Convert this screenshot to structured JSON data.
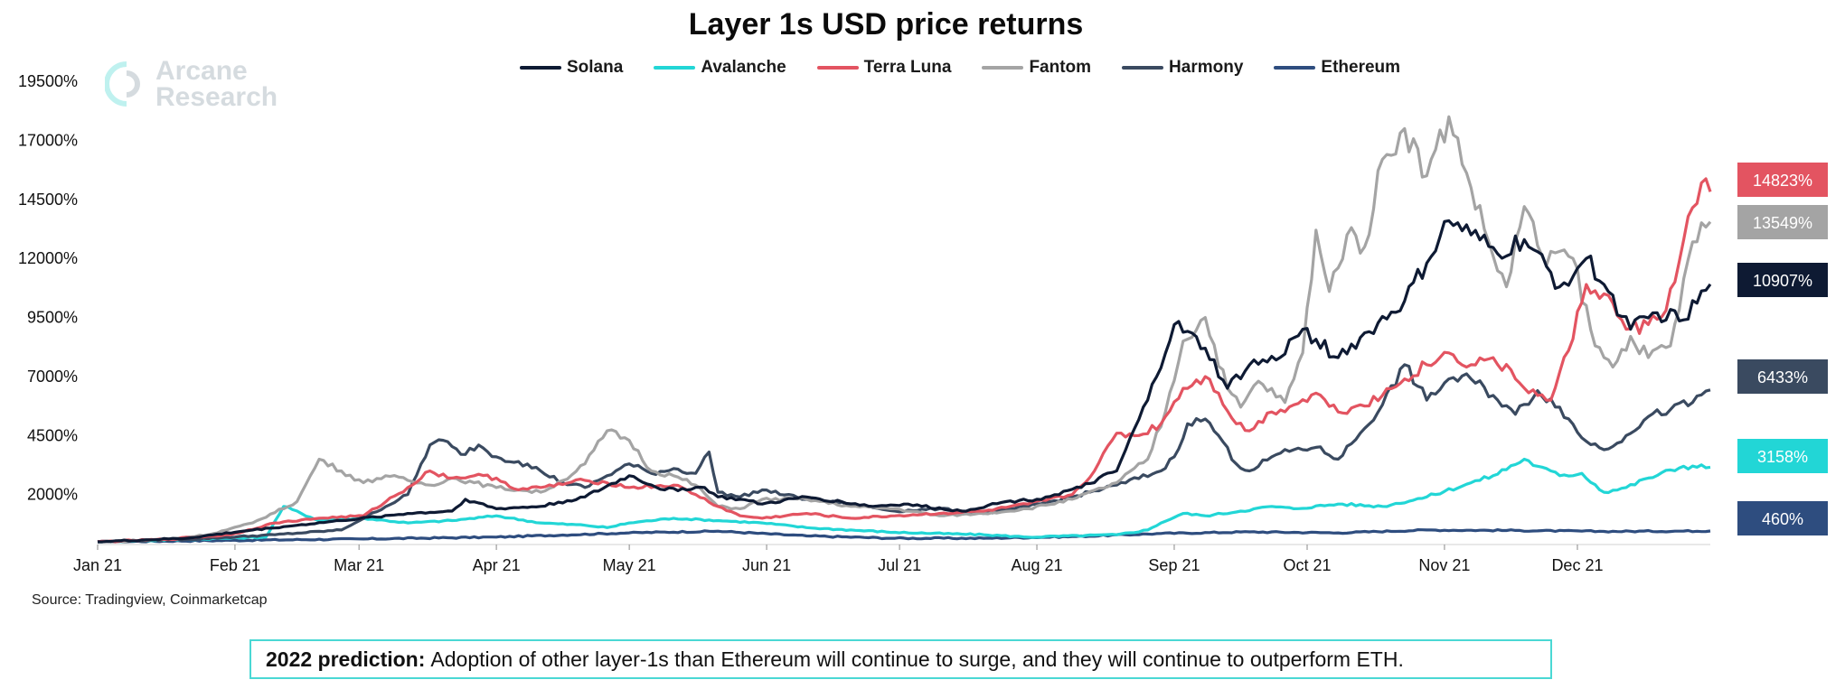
{
  "chart_data": {
    "type": "line",
    "title": "Layer 1s USD price returns",
    "xlabel": "",
    "ylabel": "",
    "ylim": [
      0,
      20000
    ],
    "y_tick_labels": [
      "2000%",
      "4500%",
      "7000%",
      "9500%",
      "12000%",
      "14500%",
      "17000%",
      "19500%"
    ],
    "y_tick_values": [
      2000,
      4500,
      7000,
      9500,
      12000,
      14500,
      17000,
      19500
    ],
    "x_tick_labels": [
      "Jan 21",
      "Feb 21",
      "Mar 21",
      "Apr 21",
      "May 21",
      "Jun 21",
      "Jul 21",
      "Aug 21",
      "Sep 21",
      "Oct 21",
      "Nov 21",
      "Dec 21"
    ],
    "x_tick_days": [
      0,
      31,
      59,
      90,
      120,
      151,
      181,
      212,
      243,
      273,
      304,
      334
    ],
    "x_range_days": [
      0,
      364
    ],
    "grid": false,
    "legend_position": "top-center",
    "series": [
      {
        "name": "Solana",
        "color": "#0e1a33",
        "x": [
          0,
          20,
          35,
          45,
          55,
          70,
          80,
          83,
          90,
          100,
          110,
          120,
          128,
          137,
          140,
          145,
          150,
          160,
          175,
          182,
          195,
          205,
          212,
          222,
          230,
          237,
          243,
          250,
          255,
          260,
          266,
          272,
          280,
          287,
          295,
          300,
          305,
          310,
          316,
          322,
          330,
          336,
          340,
          346,
          352,
          358,
          364
        ],
        "values": [
          0,
          150,
          500,
          700,
          900,
          1200,
          1300,
          1800,
          1400,
          1500,
          1900,
          2800,
          2200,
          2300,
          1900,
          1800,
          1600,
          1900,
          1500,
          1600,
          1300,
          1700,
          1800,
          2300,
          3000,
          6000,
          9200,
          8200,
          6500,
          7500,
          7700,
          9000,
          7800,
          8900,
          10200,
          11800,
          13600,
          13000,
          12200,
          12800,
          10800,
          12000,
          10900,
          9000,
          9700,
          9400,
          10907
        ]
      },
      {
        "name": "Avalanche",
        "color": "#22d6d6",
        "x": [
          0,
          20,
          38,
          42,
          50,
          60,
          70,
          80,
          90,
          100,
          110,
          115,
          120,
          130,
          140,
          150,
          160,
          180,
          200,
          210,
          230,
          237,
          240,
          245,
          250,
          258,
          265,
          270,
          280,
          290,
          300,
          310,
          315,
          322,
          325,
          330,
          335,
          340,
          345,
          350,
          358,
          364
        ],
        "values": [
          0,
          100,
          200,
          1500,
          900,
          1000,
          800,
          900,
          1100,
          800,
          700,
          600,
          800,
          1000,
          900,
          800,
          600,
          400,
          300,
          200,
          300,
          500,
          800,
          1200,
          1100,
          1300,
          1500,
          1400,
          1600,
          1500,
          1900,
          2500,
          2800,
          3500,
          3200,
          2800,
          2900,
          2100,
          2300,
          2700,
          3200,
          3158
        ]
      },
      {
        "name": "Terra Luna",
        "color": "#e35461",
        "x": [
          0,
          15,
          30,
          40,
          50,
          60,
          70,
          75,
          80,
          85,
          90,
          95,
          100,
          110,
          115,
          120,
          130,
          135,
          140,
          145,
          150,
          160,
          170,
          180,
          190,
          200,
          210,
          220,
          225,
          230,
          235,
          240,
          245,
          250,
          253,
          257,
          260,
          265,
          270,
          275,
          280,
          285,
          290,
          295,
          300,
          305,
          310,
          315,
          320,
          325,
          328,
          332,
          336,
          340,
          345,
          350,
          354,
          358,
          362,
          364
        ],
        "values": [
          0,
          100,
          300,
          800,
          1000,
          1100,
          2300,
          3000,
          2700,
          2800,
          2700,
          2200,
          2300,
          2600,
          2500,
          2300,
          2400,
          2000,
          1500,
          1100,
          1000,
          1200,
          1000,
          1100,
          1200,
          1300,
          1600,
          2000,
          3000,
          4600,
          4500,
          5000,
          6500,
          7000,
          6300,
          5000,
          4700,
          5500,
          5800,
          6300,
          5500,
          5800,
          6200,
          6900,
          7500,
          8000,
          7500,
          7800,
          6900,
          6200,
          6000,
          8100,
          10900,
          10500,
          9000,
          9200,
          9800,
          12800,
          15200,
          14823
        ]
      },
      {
        "name": "Fantom",
        "color": "#a4a4a4",
        "x": [
          0,
          15,
          25,
          35,
          45,
          50,
          55,
          60,
          65,
          70,
          75,
          80,
          85,
          90,
          95,
          100,
          105,
          110,
          115,
          120,
          125,
          130,
          135,
          140,
          145,
          150,
          160,
          170,
          180,
          190,
          200,
          210,
          220,
          230,
          237,
          241,
          245,
          250,
          255,
          258,
          262,
          268,
          272,
          275,
          278,
          282,
          286,
          290,
          295,
          300,
          305,
          310,
          315,
          318,
          322,
          327,
          330,
          333,
          338,
          342,
          346,
          350,
          355,
          360,
          364
        ],
        "values": [
          0,
          100,
          300,
          800,
          1700,
          3500,
          3000,
          2500,
          2800,
          2600,
          2400,
          2700,
          2500,
          2300,
          2200,
          2100,
          2600,
          3300,
          4700,
          4300,
          3000,
          2800,
          2400,
          1500,
          1400,
          1800,
          1800,
          1500,
          1400,
          1100,
          1200,
          1400,
          1800,
          2500,
          3500,
          5500,
          8500,
          9500,
          6500,
          5700,
          6800,
          5900,
          8000,
          13200,
          10600,
          13000,
          12500,
          16200,
          17500,
          15500,
          18000,
          15000,
          12100,
          10800,
          14200,
          11700,
          12300,
          12000,
          8300,
          7400,
          8700,
          7800,
          8300,
          12700,
          13549
        ]
      },
      {
        "name": "Harmony",
        "color": "#3a4a60",
        "x": [
          0,
          20,
          40,
          55,
          70,
          75,
          78,
          82,
          86,
          90,
          95,
          100,
          105,
          110,
          115,
          120,
          125,
          130,
          135,
          138,
          140,
          145,
          150,
          160,
          170,
          180,
          190,
          200,
          210,
          220,
          230,
          240,
          243,
          246,
          250,
          253,
          257,
          260,
          265,
          270,
          275,
          280,
          285,
          290,
          295,
          300,
          305,
          310,
          315,
          320,
          325,
          330,
          335,
          340,
          345,
          350,
          355,
          360,
          364
        ],
        "values": [
          0,
          100,
          300,
          500,
          2000,
          4100,
          4300,
          3700,
          4100,
          3600,
          3400,
          3000,
          2500,
          2300,
          2800,
          3300,
          2900,
          3100,
          2900,
          3800,
          2100,
          1900,
          2200,
          1800,
          1600,
          1300,
          1400,
          1200,
          1500,
          1900,
          2400,
          3000,
          3600,
          5000,
          5200,
          4500,
          3300,
          3000,
          3600,
          3900,
          4000,
          3500,
          4600,
          5800,
          7500,
          6000,
          6900,
          6900,
          6200,
          5400,
          6400,
          5700,
          4400,
          3900,
          4500,
          5300,
          5600,
          5900,
          6433
        ]
      },
      {
        "name": "Ethereum",
        "color": "#2e4d7f",
        "x": [
          0,
          30,
          60,
          90,
          120,
          140,
          160,
          180,
          200,
          220,
          240,
          260,
          280,
          300,
          320,
          340,
          364
        ],
        "values": [
          0,
          60,
          120,
          200,
          380,
          450,
          250,
          150,
          150,
          220,
          350,
          420,
          380,
          500,
          480,
          440,
          460
        ]
      }
    ],
    "end_labels": [
      {
        "series": "Terra Luna",
        "text": "14823%",
        "color": "#e35461"
      },
      {
        "series": "Fantom",
        "text": "13549%",
        "color": "#a4a4a4"
      },
      {
        "series": "Solana",
        "text": "10907%",
        "color": "#0e1a33"
      },
      {
        "series": "Harmony",
        "text": "6433%",
        "color": "#3a4a60"
      },
      {
        "series": "Avalanche",
        "text": "3158%",
        "color": "#22d6d6"
      },
      {
        "series": "Ethereum",
        "text": "460%",
        "color": "#2e4d7f"
      }
    ]
  },
  "watermark": {
    "line1": "Arcane",
    "line2": "Research"
  },
  "source": "Source: Tradingview, Coinmarketcap",
  "prediction": {
    "bold": "2022 prediction:",
    "text": "Adoption of other layer-1s than Ethereum will continue to surge, and they will continue to outperform ETH."
  }
}
